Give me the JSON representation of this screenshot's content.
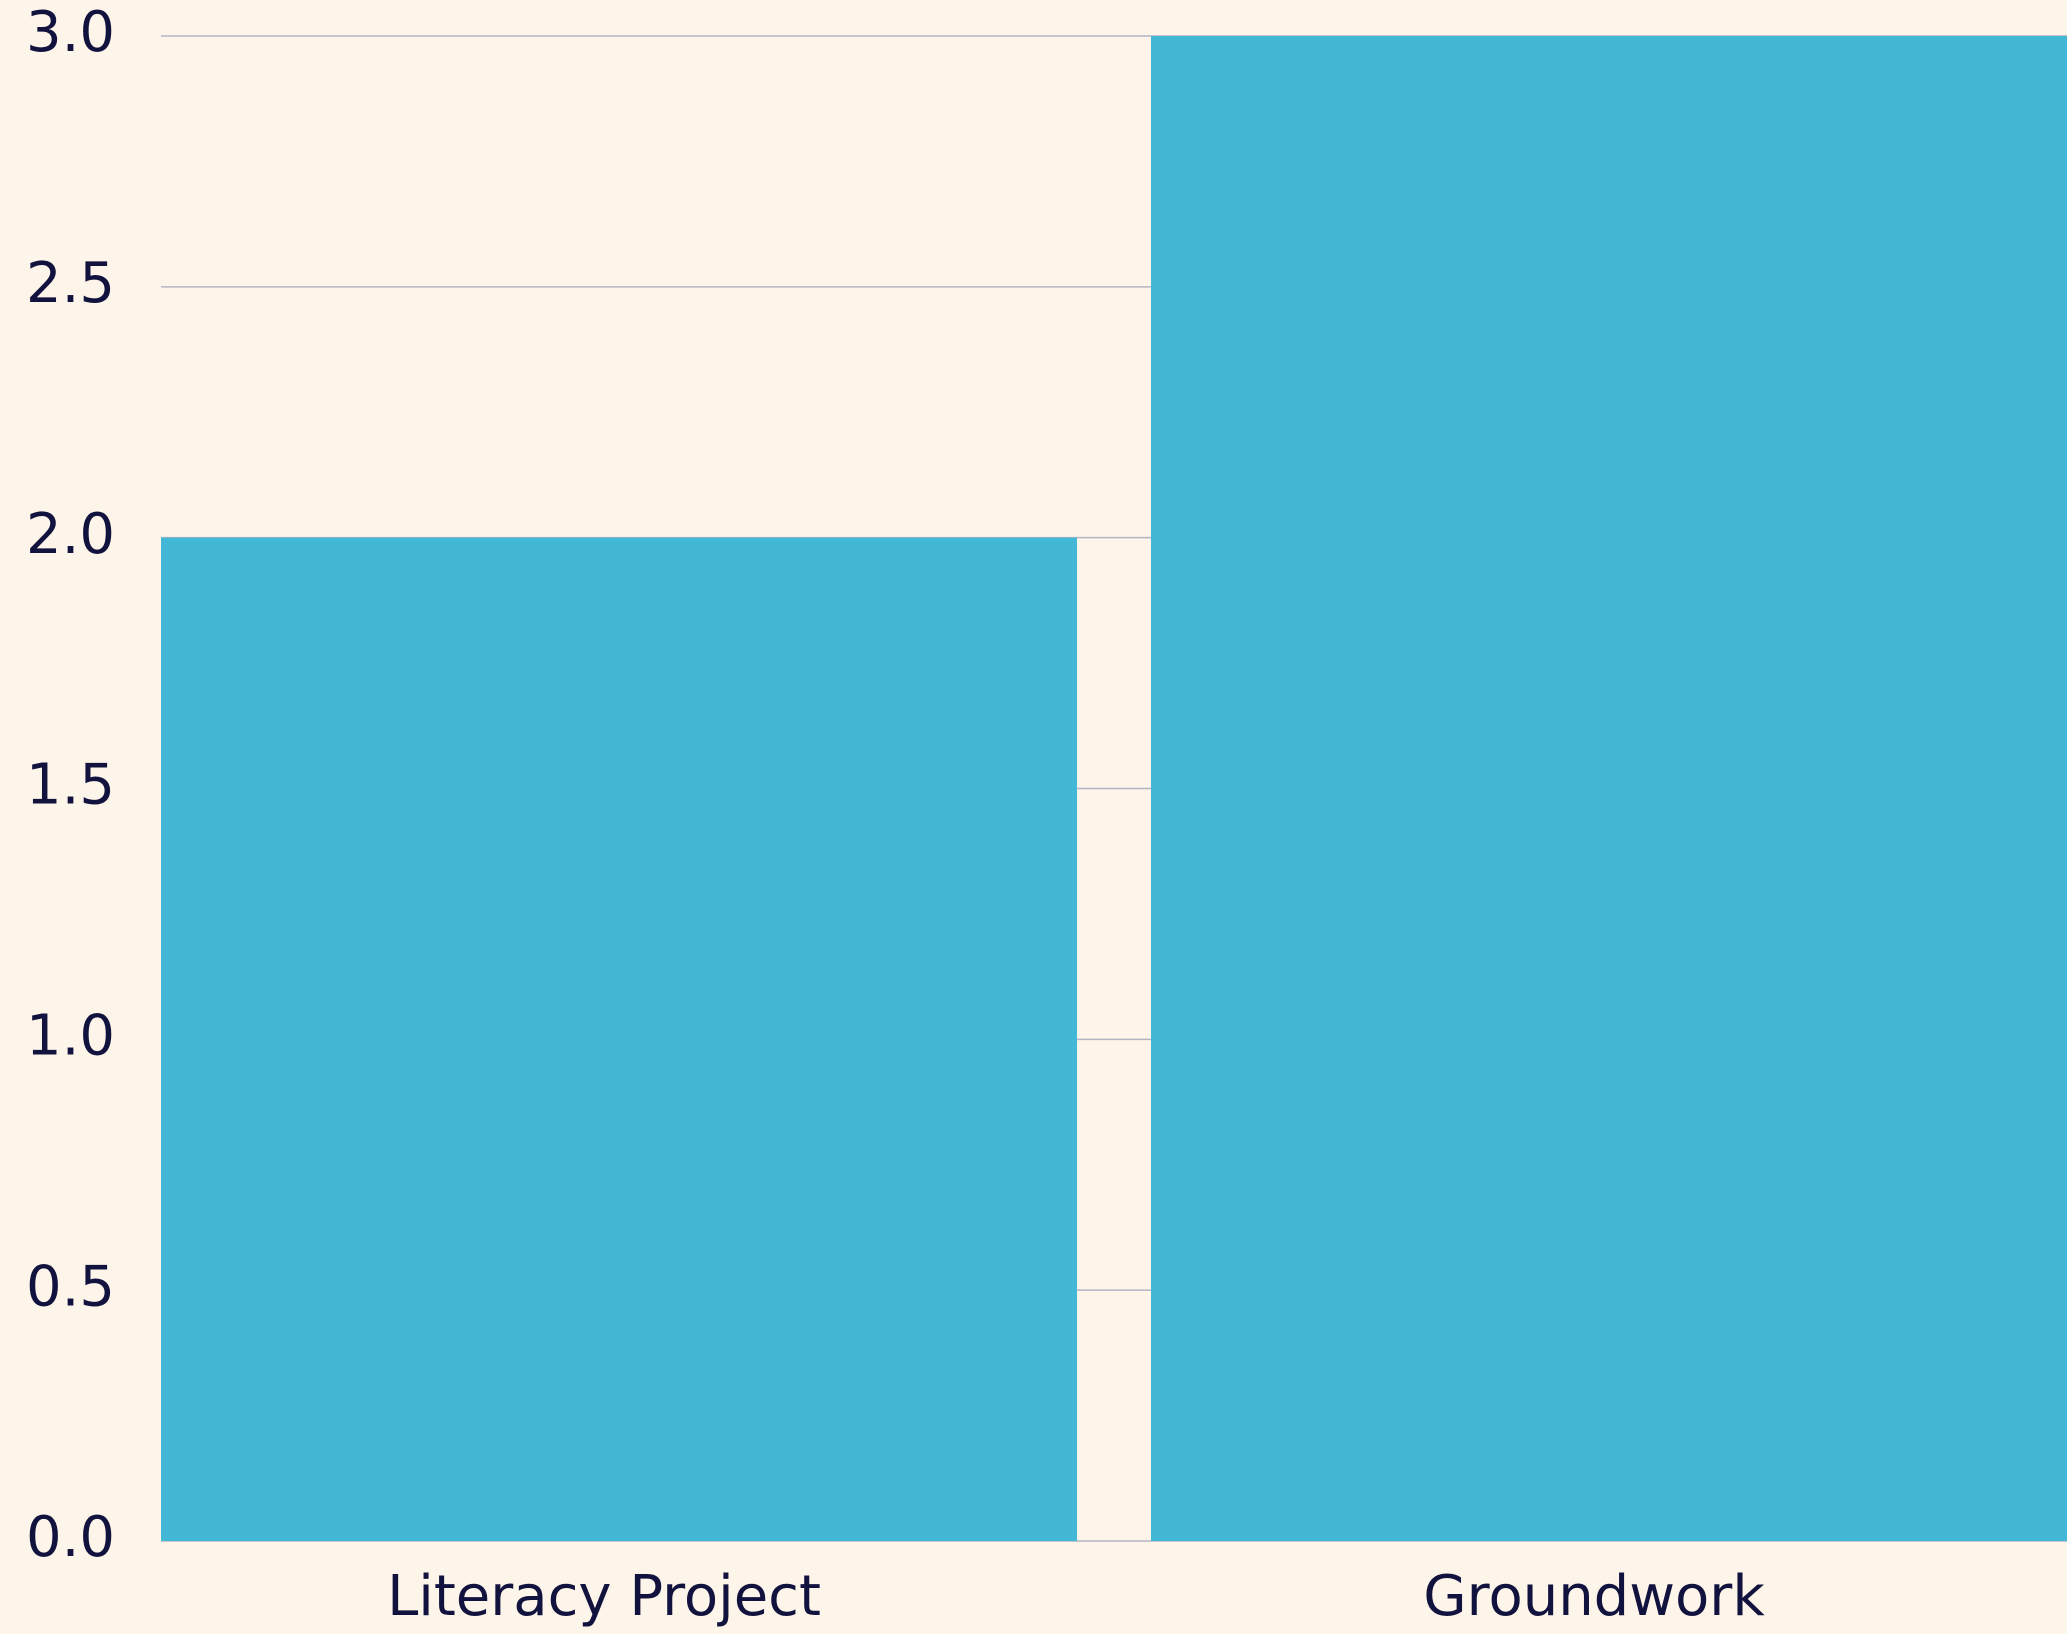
{
  "chart_data": {
    "type": "bar",
    "categories": [
      "Literacy Project",
      "Groundwork"
    ],
    "values": [
      2,
      3
    ],
    "color": "#42b7d6",
    "ylim": [
      0,
      3
    ],
    "yticks": [
      {
        "value": 0,
        "label": "0.0"
      },
      0.5,
      {
        "value": 1,
        "label": "1.0"
      },
      1.5,
      {
        "value": 2,
        "label": "2.0"
      },
      2.5,
      {
        "value": 3,
        "label": "3.0"
      }
    ],
    "grid": true
  }
}
